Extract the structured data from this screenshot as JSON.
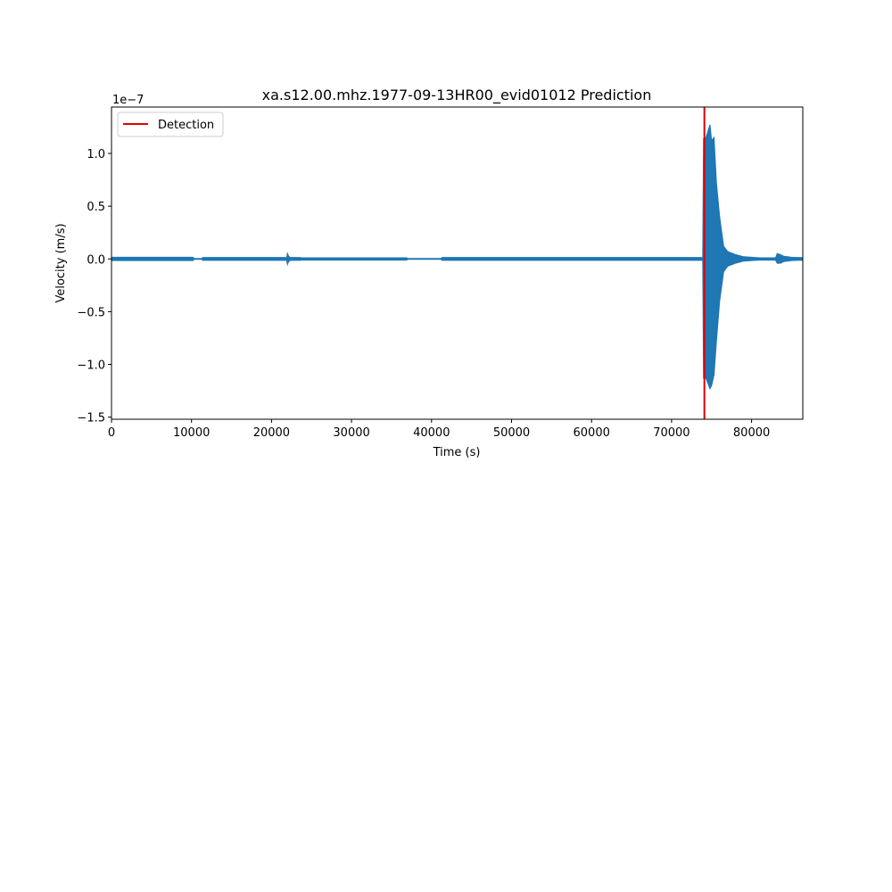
{
  "chart_data": {
    "type": "line",
    "title": "xa.s12.00.mhz.1977-09-13HR00_evid01012 Prediction",
    "xlabel": "Time (s)",
    "ylabel": "Velocity (m/s)",
    "y_offset_label": "1e−7",
    "xlim": [
      0,
      86400
    ],
    "ylim": [
      -1.52,
      1.44
    ],
    "y_scale": 1e-07,
    "x_ticks": [
      0,
      10000,
      20000,
      30000,
      40000,
      50000,
      60000,
      70000,
      80000
    ],
    "x_tick_labels": [
      "0",
      "10000",
      "20000",
      "30000",
      "40000",
      "50000",
      "60000",
      "70000",
      "80000"
    ],
    "y_ticks": [
      -1.5,
      -1.0,
      -0.5,
      0.0,
      0.5,
      1.0
    ],
    "y_tick_labels": [
      "−1.5",
      "−1.0",
      "−0.5",
      "0.0",
      "0.5",
      "1.0"
    ],
    "grid": false,
    "legend": {
      "position": "top-left",
      "entries": [
        {
          "label": "Detection",
          "color": "#e00000"
        }
      ]
    },
    "series": [
      {
        "color": "#1f77b4",
        "envelope": {
          "x": [
            0,
            10200,
            10300,
            11300,
            11400,
            21900,
            22000,
            22100,
            22300,
            23600,
            23700,
            36900,
            37000,
            41200,
            41300,
            73900,
            74000,
            74300,
            74800,
            75000,
            75300,
            75600,
            76000,
            76500,
            77000,
            78000,
            79000,
            80000,
            81000,
            82000,
            83000,
            83200,
            83600,
            84000,
            85000,
            86400
          ],
          "upper": [
            0.015,
            0.015,
            0.004,
            0.004,
            0.013,
            0.013,
            0.05,
            0.03,
            0.013,
            0.013,
            0.01,
            0.01,
            0.003,
            0.003,
            0.013,
            0.013,
            1.14,
            1.15,
            1.27,
            1.12,
            1.15,
            0.72,
            0.4,
            0.12,
            0.07,
            0.04,
            0.02,
            0.015,
            0.01,
            0.01,
            0.01,
            0.05,
            0.04,
            0.025,
            0.015,
            0.012
          ],
          "lower": [
            -0.015,
            -0.015,
            -0.004,
            -0.004,
            -0.013,
            -0.013,
            -0.05,
            -0.03,
            -0.013,
            -0.013,
            -0.01,
            -0.01,
            -0.003,
            -0.003,
            -0.013,
            -0.013,
            -1.13,
            -1.13,
            -1.23,
            -1.2,
            -1.1,
            -0.78,
            -0.4,
            -0.12,
            -0.07,
            -0.04,
            -0.02,
            -0.015,
            -0.01,
            -0.01,
            -0.01,
            -0.04,
            -0.04,
            -0.025,
            -0.015,
            -0.012
          ]
        }
      }
    ],
    "detection_x": 74100
  }
}
